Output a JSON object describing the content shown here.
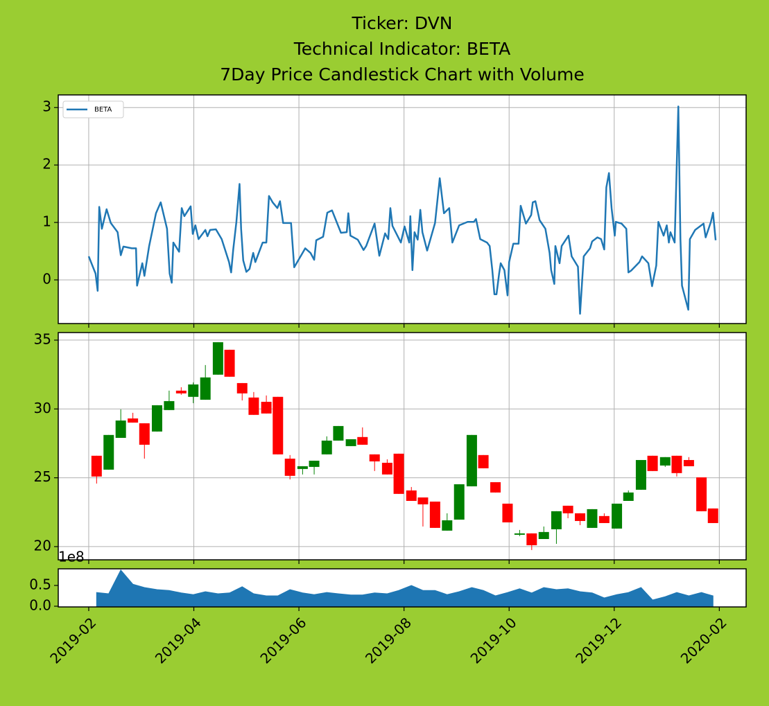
{
  "chart_data": [
    {
      "type": "line",
      "title": [
        "Ticker: DVN",
        "Technical Indicator: BETA",
        "7Day Price Candlestick Chart with Volume"
      ],
      "x": [
        1.0,
        1.13,
        1.17,
        1.2,
        1.25,
        1.34,
        1.42,
        1.55,
        1.61,
        1.66,
        1.82,
        1.9,
        1.92,
        2.02,
        2.06,
        2.15,
        2.28,
        2.37,
        2.49,
        2.54,
        2.58,
        2.61,
        2.72,
        2.77,
        2.82,
        2.94,
        2.98,
        3.03,
        3.09,
        3.22,
        3.26,
        3.31,
        3.42,
        3.53,
        3.67,
        3.71,
        3.75,
        3.81,
        3.87,
        3.9,
        3.94,
        4.0,
        4.06,
        4.13,
        4.17,
        4.31,
        4.38,
        4.43,
        4.5,
        4.59,
        4.64,
        4.7,
        4.85,
        4.91,
        5.07,
        5.12,
        5.22,
        5.29,
        5.33,
        5.46,
        5.54,
        5.63,
        5.73,
        5.8,
        5.91,
        5.94,
        5.98,
        6.12,
        6.23,
        6.28,
        6.44,
        6.53,
        6.64,
        6.7,
        6.74,
        6.78,
        6.94,
        7.01,
        7.1,
        7.12,
        7.16,
        7.2,
        7.26,
        7.31,
        7.35,
        7.44,
        7.59,
        7.68,
        7.76,
        7.86,
        7.92,
        8.05,
        8.21,
        8.33,
        8.37,
        8.45,
        8.58,
        8.63,
        8.68,
        8.72,
        8.76,
        8.81,
        8.84,
        8.91,
        8.97,
        9.0,
        9.08,
        9.18,
        9.22,
        9.32,
        9.42,
        9.45,
        9.5,
        9.58,
        9.69,
        9.77,
        9.8,
        9.86,
        9.88,
        9.96,
        10.0,
        10.13,
        10.19,
        10.31,
        10.35,
        10.39,
        10.42,
        10.54,
        10.58,
        10.68,
        10.75,
        10.81,
        10.85,
        10.9,
        10.95,
        11.01,
        11.03,
        11.14,
        11.23,
        11.27,
        11.32,
        11.48,
        11.53,
        11.65,
        11.72,
        11.8,
        11.84,
        11.94,
        12.0,
        12.04,
        12.07,
        12.15,
        12.22,
        12.26,
        12.29,
        12.41,
        12.44,
        12.54,
        12.7,
        12.74,
        12.84,
        12.88,
        12.93
      ],
      "series": [
        {
          "name": "BETA",
          "color": "#1f77b4",
          "values": [
            0.41,
            0.11,
            -0.19,
            1.27,
            0.89,
            1.23,
            0.99,
            0.83,
            0.43,
            0.58,
            0.55,
            0.55,
            -0.1,
            0.29,
            0.07,
            0.59,
            1.16,
            1.35,
            0.89,
            0.11,
            -0.05,
            0.65,
            0.49,
            1.25,
            1.11,
            1.28,
            0.8,
            0.95,
            0.71,
            0.87,
            0.76,
            0.87,
            0.88,
            0.71,
            0.31,
            0.13,
            0.53,
            1.01,
            1.67,
            0.89,
            0.34,
            0.14,
            0.19,
            0.47,
            0.31,
            0.65,
            0.65,
            1.46,
            1.35,
            1.25,
            1.37,
            0.99,
            0.99,
            0.22,
            0.47,
            0.55,
            0.47,
            0.35,
            0.69,
            0.75,
            1.17,
            1.21,
            0.98,
            0.82,
            0.83,
            1.16,
            0.77,
            0.7,
            0.52,
            0.59,
            0.98,
            0.42,
            0.81,
            0.71,
            1.25,
            0.94,
            0.65,
            0.93,
            0.65,
            1.11,
            0.17,
            0.83,
            0.7,
            1.22,
            0.83,
            0.51,
            0.99,
            1.77,
            1.16,
            1.25,
            0.65,
            0.95,
            1.01,
            1.01,
            1.06,
            0.71,
            0.65,
            0.59,
            0.17,
            -0.25,
            -0.25,
            0.11,
            0.29,
            0.17,
            -0.27,
            0.31,
            0.63,
            0.63,
            1.29,
            0.98,
            1.13,
            1.35,
            1.37,
            1.04,
            0.89,
            0.47,
            0.17,
            -0.07,
            0.59,
            0.29,
            0.59,
            0.77,
            0.41,
            0.23,
            -0.59,
            -0.01,
            0.41,
            0.55,
            0.67,
            0.74,
            0.71,
            0.53,
            1.61,
            1.86,
            1.25,
            0.77,
            1.01,
            0.98,
            0.89,
            0.13,
            0.16,
            0.31,
            0.41,
            0.29,
            -0.11,
            0.25,
            1.01,
            0.77,
            0.95,
            0.65,
            0.83,
            0.65,
            3.02,
            0.71,
            -0.1,
            -0.52,
            0.71,
            0.87,
            0.98,
            0.74,
            1.01,
            1.17,
            0.69
          ]
        }
      ],
      "ylim": [
        -0.76,
        3.22
      ],
      "yticks": [
        0,
        1,
        2,
        3
      ],
      "grid": true,
      "legend": "upper left"
    },
    {
      "type": "candlestick",
      "x": [
        1.15,
        1.38,
        1.61,
        1.84,
        2.06,
        2.3,
        2.53,
        2.76,
        2.99,
        3.22,
        3.46,
        3.68,
        3.92,
        4.14,
        4.38,
        4.6,
        4.83,
        5.07,
        5.29,
        5.53,
        5.75,
        5.99,
        6.21,
        6.44,
        6.68,
        6.9,
        7.14,
        7.36,
        7.59,
        7.82,
        8.05,
        8.29,
        8.51,
        8.74,
        8.97,
        9.2,
        9.43,
        9.66,
        9.9,
        10.12,
        10.35,
        10.58,
        10.81,
        11.05,
        11.27,
        11.51,
        11.73,
        11.97,
        12.19,
        12.42,
        12.66,
        12.88
      ],
      "open": [
        26.6,
        25.59,
        27.9,
        29.31,
        28.96,
        28.36,
        29.92,
        31.33,
        30.88,
        30.67,
        32.49,
        34.3,
        31.88,
        30.83,
        30.52,
        30.88,
        26.39,
        25.64,
        25.79,
        26.7,
        27.7,
        27.3,
        27.96,
        26.7,
        26.09,
        26.75,
        24.08,
        23.57,
        23.27,
        21.16,
        21.96,
        24.38,
        26.65,
        24.68,
        23.12,
        20.86,
        20.96,
        20.55,
        21.26,
        22.97,
        22.42,
        21.36,
        22.22,
        21.31,
        23.32,
        24.13,
        26.6,
        25.89,
        26.6,
        26.29,
        25.03,
        22.77
      ],
      "high": [
        26.6,
        28.11,
        29.97,
        29.72,
        28.96,
        30.27,
        31.33,
        31.58,
        31.93,
        33.19,
        34.85,
        34.3,
        31.88,
        31.23,
        30.98,
        30.88,
        26.65,
        25.84,
        26.24,
        28.01,
        28.76,
        27.8,
        28.66,
        26.7,
        26.34,
        26.75,
        24.33,
        23.57,
        23.27,
        22.42,
        24.53,
        28.11,
        26.65,
        24.68,
        23.12,
        21.21,
        20.96,
        21.46,
        22.57,
        22.97,
        22.42,
        22.72,
        22.42,
        23.12,
        24.08,
        26.29,
        26.6,
        26.5,
        26.6,
        26.5,
        25.03,
        22.77
      ],
      "low": [
        24.58,
        25.59,
        27.9,
        29.01,
        26.39,
        28.36,
        29.92,
        31.03,
        30.42,
        30.67,
        32.49,
        32.34,
        30.62,
        29.57,
        29.67,
        26.7,
        24.88,
        25.24,
        25.24,
        26.7,
        27.7,
        27.3,
        27.4,
        25.49,
        25.24,
        23.83,
        23.32,
        21.46,
        21.36,
        21.16,
        21.96,
        24.38,
        25.69,
        23.93,
        21.76,
        20.76,
        19.75,
        20.55,
        20.2,
        22.06,
        21.56,
        21.36,
        21.71,
        21.31,
        23.32,
        24.13,
        25.49,
        25.79,
        25.09,
        25.84,
        22.57,
        21.71
      ],
      "close": [
        25.09,
        28.11,
        29.16,
        29.01,
        27.4,
        30.27,
        30.57,
        31.13,
        31.78,
        32.29,
        34.85,
        32.34,
        31.13,
        29.57,
        29.67,
        26.7,
        25.14,
        25.84,
        26.24,
        27.7,
        28.76,
        27.8,
        27.4,
        26.19,
        25.24,
        23.83,
        23.32,
        23.07,
        21.36,
        21.91,
        24.53,
        28.11,
        25.69,
        23.93,
        21.76,
        20.96,
        20.1,
        21.06,
        22.57,
        22.42,
        21.86,
        22.72,
        21.71,
        23.12,
        23.93,
        26.29,
        25.49,
        26.5,
        25.34,
        25.84,
        22.57,
        21.71
      ],
      "up_color": "green",
      "down_color": "red",
      "ylim": [
        19.04,
        35.55
      ],
      "yticks": [
        20,
        25,
        30,
        35
      ],
      "grid": true
    },
    {
      "type": "area",
      "x": [
        1.15,
        1.38,
        1.61,
        1.84,
        2.06,
        2.3,
        2.53,
        2.76,
        2.99,
        3.22,
        3.46,
        3.68,
        3.92,
        4.14,
        4.38,
        4.6,
        4.83,
        5.07,
        5.29,
        5.53,
        5.75,
        5.99,
        6.21,
        6.44,
        6.68,
        6.9,
        7.14,
        7.36,
        7.59,
        7.82,
        8.05,
        8.29,
        8.51,
        8.74,
        8.97,
        9.2,
        9.43,
        9.66,
        9.9,
        10.12,
        10.35,
        10.58,
        10.81,
        11.05,
        11.27,
        11.51,
        11.73,
        11.97,
        12.19,
        12.42,
        12.66,
        12.88
      ],
      "values": [
        0.33,
        0.3,
        0.87,
        0.53,
        0.45,
        0.4,
        0.38,
        0.32,
        0.28,
        0.35,
        0.3,
        0.32,
        0.47,
        0.3,
        0.25,
        0.25,
        0.4,
        0.32,
        0.28,
        0.33,
        0.3,
        0.27,
        0.27,
        0.32,
        0.3,
        0.38,
        0.5,
        0.38,
        0.38,
        0.28,
        0.35,
        0.45,
        0.38,
        0.25,
        0.33,
        0.42,
        0.32,
        0.45,
        0.4,
        0.42,
        0.35,
        0.32,
        0.2,
        0.28,
        0.33,
        0.45,
        0.15,
        0.23,
        0.33,
        0.25,
        0.33,
        0.25
      ],
      "color": "#1f77b4",
      "ylim": [
        -0.017,
        0.9
      ],
      "yticks": [
        {
          "value": 0,
          "label": "0.0"
        },
        {
          "value": 0.5,
          "label": "0.5"
        }
      ],
      "y_offset_label": "1e8",
      "grid": false,
      "xlim": [
        0.42,
        13.51
      ],
      "xticks": [
        {
          "value": 1,
          "label": "2019-02"
        },
        {
          "value": 3,
          "label": "2019-04"
        },
        {
          "value": 5,
          "label": "2019-06"
        },
        {
          "value": 7,
          "label": "2019-08"
        },
        {
          "value": 9,
          "label": "2019-10"
        },
        {
          "value": 11,
          "label": "2019-12"
        },
        {
          "value": 13,
          "label": "2020-02"
        }
      ]
    }
  ]
}
